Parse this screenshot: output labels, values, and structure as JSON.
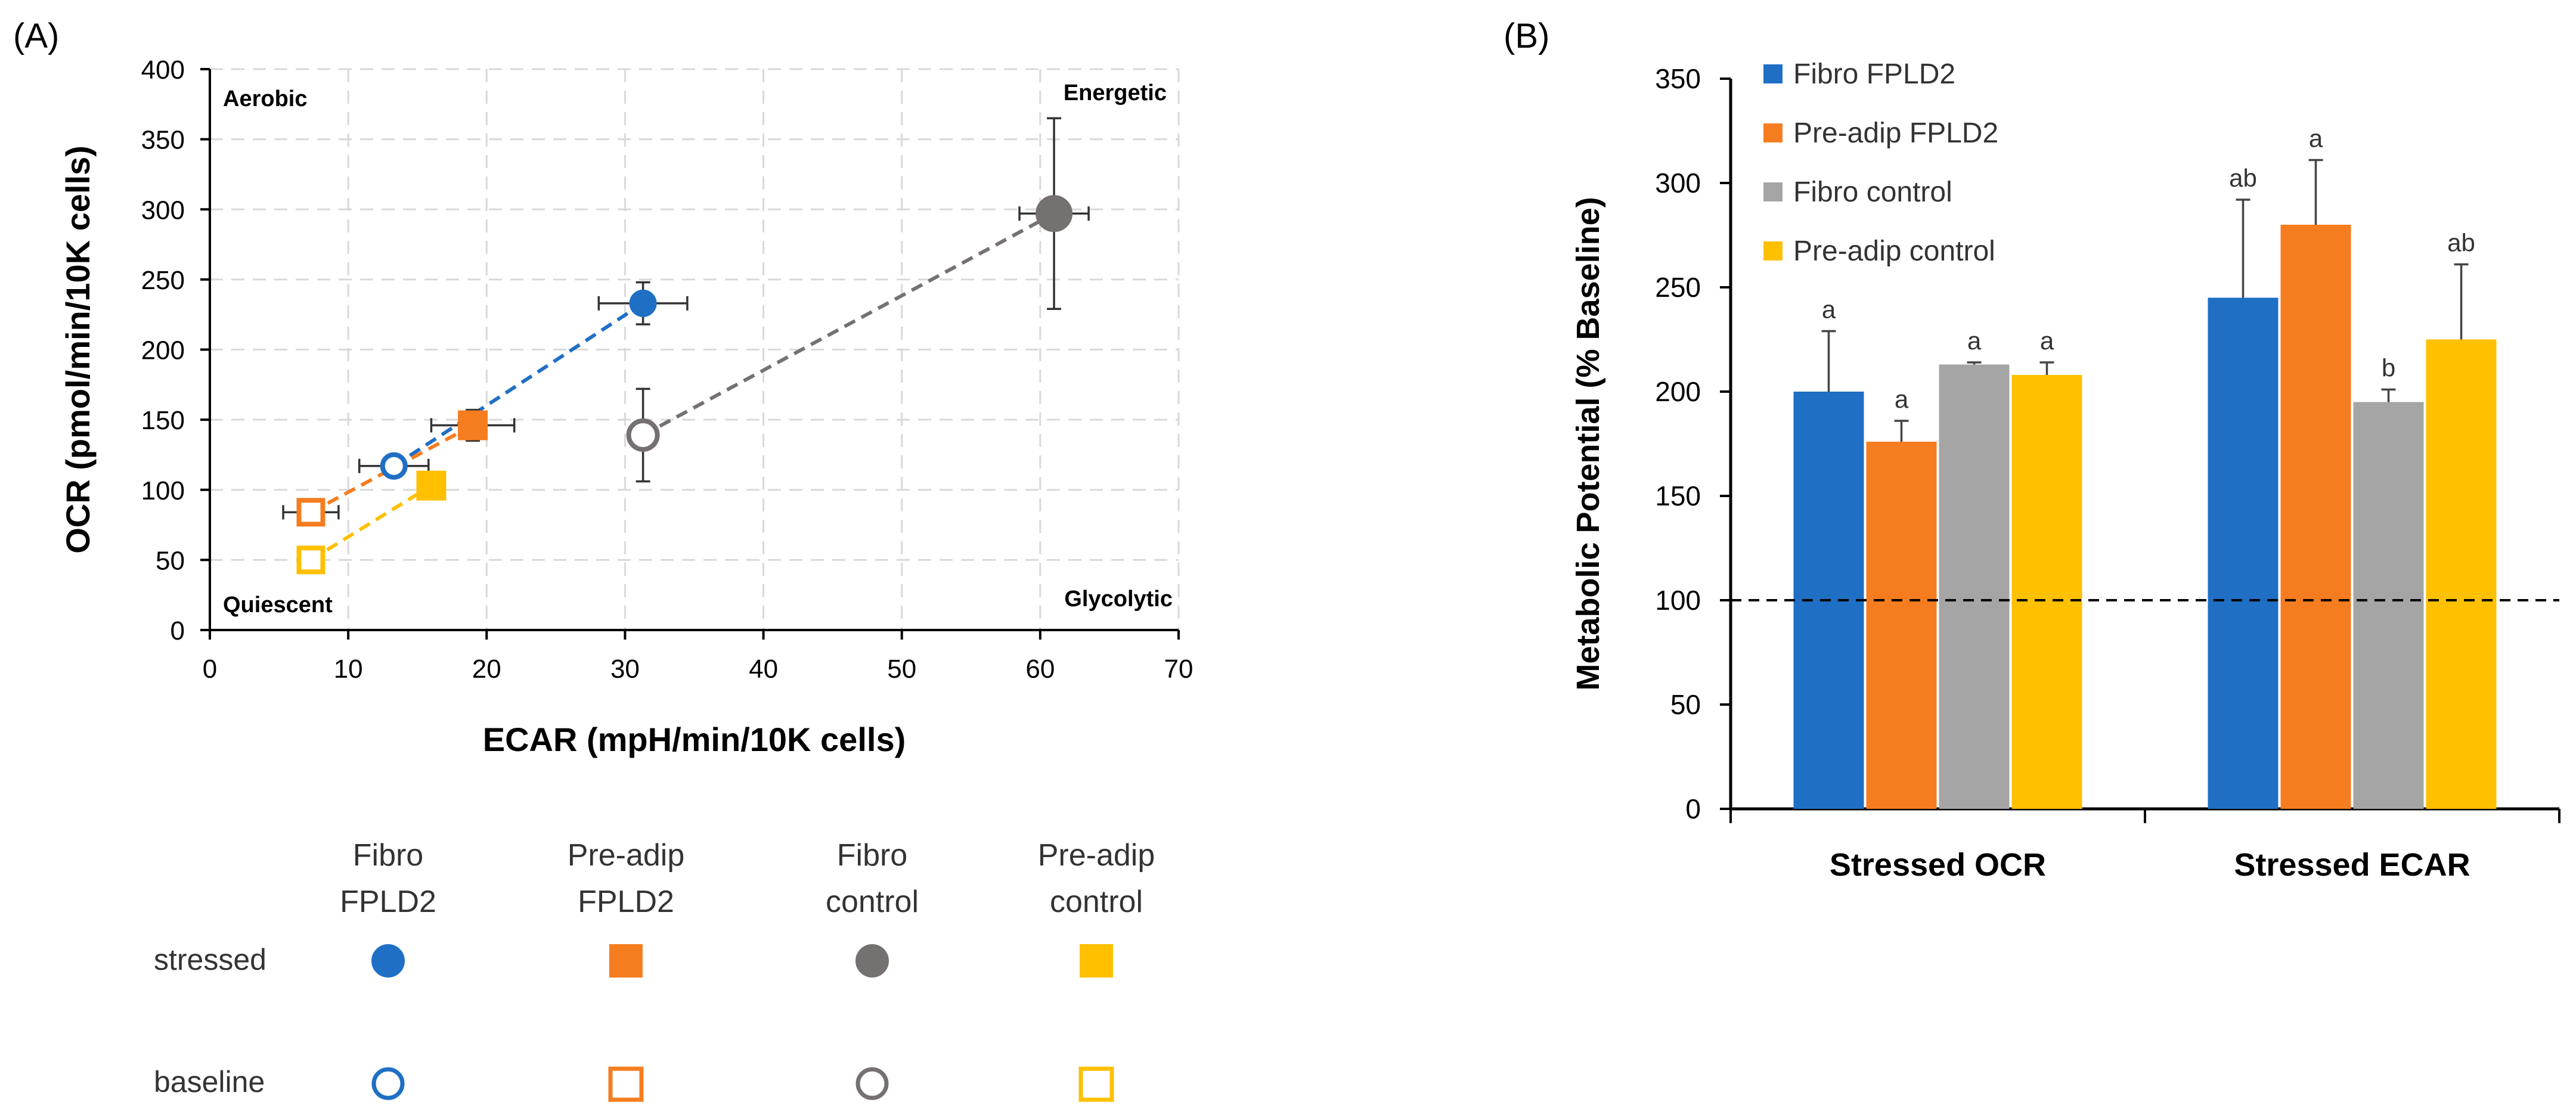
{
  "chart_data": [
    {
      "type": "scatter",
      "panel_label": "(A)",
      "xlabel": "ECAR (mpH/min/10K cells)",
      "ylabel": "OCR (pmol/min/10K cells)",
      "xlim": [
        0,
        70
      ],
      "ylim": [
        0,
        400
      ],
      "xticks": [
        "0",
        "10",
        "20",
        "30",
        "40",
        "50",
        "60",
        "70"
      ],
      "yticks": [
        "0",
        "50",
        "100",
        "150",
        "200",
        "250",
        "300",
        "350",
        "400"
      ],
      "grid": "dashed",
      "quadrant_labels": {
        "top_left": "Aerobic",
        "top_right": "Energetic",
        "bottom_left": "Quiescent",
        "bottom_right": "Glycolytic"
      },
      "series": [
        {
          "key": "fibro_fpld2",
          "color": "#1f6fc5",
          "marker": "circle",
          "baseline": {
            "x": 13.3,
            "y": 117,
            "xerr": 2.5,
            "yerr": 6
          },
          "stressed": {
            "x": 31.3,
            "y": 233,
            "xerr": 3.2,
            "yerr": 15
          }
        },
        {
          "key": "preadip_fpld2",
          "color": "#f57d1f",
          "marker": "square",
          "baseline": {
            "x": 7.3,
            "y": 84,
            "xerr": 2.0,
            "yerr": 4
          },
          "stressed": {
            "x": 19.0,
            "y": 146,
            "xerr": 3.0,
            "yerr": 11
          }
        },
        {
          "key": "fibro_control",
          "color": "#767171",
          "marker": "circle",
          "baseline": {
            "x": 31.3,
            "y": 139,
            "xerr": 0,
            "yerr": 33
          },
          "stressed": {
            "x": 61.0,
            "y": 297,
            "xerr": 2.5,
            "yerr": 68
          }
        },
        {
          "key": "preadip_control",
          "color": "#ffc000",
          "marker": "square",
          "baseline": {
            "x": 7.3,
            "y": 50,
            "xerr": 0,
            "yerr": 0
          },
          "stressed": {
            "x": 16.0,
            "y": 103,
            "xerr": 0,
            "yerr": 0
          }
        }
      ]
    },
    {
      "type": "bar",
      "panel_label": "(B)",
      "ylabel": "Metabolic Potential (% Baseline)",
      "ylim": [
        0,
        350
      ],
      "yticks": [
        "0",
        "50",
        "100",
        "150",
        "200",
        "250",
        "300",
        "350"
      ],
      "reference_line": 100,
      "categories": [
        "Stressed OCR",
        "Stressed ECAR"
      ],
      "series": [
        {
          "name": "Fibro FPLD2",
          "color": "#1f6fc5",
          "values": [
            200,
            245
          ],
          "errors": [
            29,
            47
          ],
          "letters": [
            "a",
            "ab"
          ]
        },
        {
          "name": "Pre-adip FPLD2",
          "color": "#f57d1f",
          "values": [
            176,
            280
          ],
          "errors": [
            10,
            31
          ],
          "letters": [
            "a",
            "a"
          ]
        },
        {
          "name": "Fibro control",
          "color": "#a5a5a5",
          "values": [
            213,
            195
          ],
          "errors": [
            1,
            6
          ],
          "letters": [
            "a",
            "b"
          ]
        },
        {
          "name": "Pre-adip control",
          "color": "#ffc000",
          "values": [
            208,
            225
          ],
          "errors": [
            6,
            36
          ],
          "letters": [
            "a",
            "ab"
          ]
        }
      ]
    }
  ],
  "legend_a": {
    "columns": [
      "Fibro\nFPLD2",
      "Pre-adip\nFPLD2",
      "Fibro\ncontrol",
      "Pre-adip\ncontrol"
    ],
    "rows": [
      "stressed",
      "baseline"
    ]
  }
}
